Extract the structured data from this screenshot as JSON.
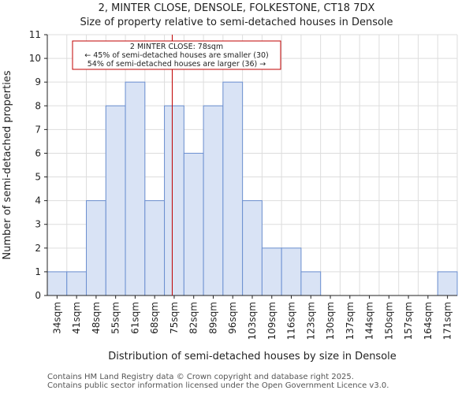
{
  "chart_data": {
    "type": "bar",
    "title": "2, MINTER CLOSE, DENSOLE, FOLKESTONE, CT18 7DX",
    "subtitle": "Size of property relative to semi-detached houses in Densole",
    "xlabel": "Distribution of semi-detached houses by size in Densole",
    "ylabel": "Number of semi-detached properties",
    "categories": [
      "34sqm",
      "41sqm",
      "48sqm",
      "55sqm",
      "61sqm",
      "68sqm",
      "75sqm",
      "82sqm",
      "89sqm",
      "96sqm",
      "103sqm",
      "109sqm",
      "116sqm",
      "123sqm",
      "130sqm",
      "137sqm",
      "144sqm",
      "150sqm",
      "157sqm",
      "164sqm",
      "171sqm"
    ],
    "values": [
      1,
      1,
      4,
      8,
      9,
      4,
      8,
      6,
      8,
      9,
      4,
      2,
      2,
      1,
      0,
      0,
      0,
      0,
      0,
      0,
      1
    ],
    "ylim": [
      0,
      11
    ],
    "yticks": [
      0,
      1,
      2,
      3,
      4,
      5,
      6,
      7,
      8,
      9,
      10,
      11
    ],
    "grid": true,
    "bar_color": "#d9e3f5",
    "bar_edge_color": "#6b8fd0",
    "marker": {
      "value_index": 6.4,
      "color": "#c00000",
      "annotation": {
        "line1": "2 MINTER CLOSE: 78sqm",
        "line2": "← 45% of semi-detached houses are smaller (30)",
        "line3": "54% of semi-detached houses are larger (36) →"
      }
    }
  },
  "footer": {
    "line1": "Contains HM Land Registry data © Crown copyright and database right 2025.",
    "line2": "Contains public sector information licensed under the Open Government Licence v3.0."
  }
}
